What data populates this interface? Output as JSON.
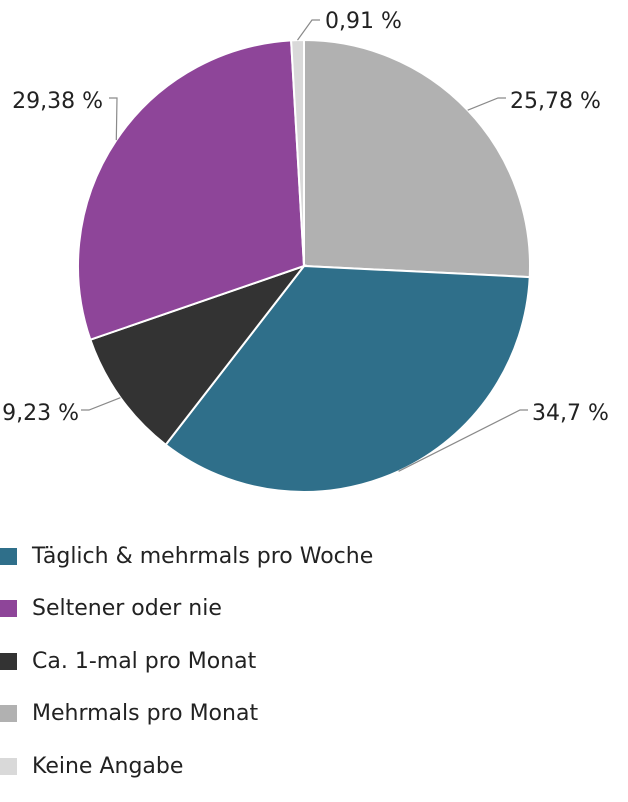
{
  "chart_data": {
    "type": "pie",
    "title": "",
    "slices": [
      {
        "label": "Mehrmals pro Monat",
        "value": 25.78,
        "value_label": "25,78 %",
        "color": "#b1b1b1"
      },
      {
        "label": "Täglich & mehrmals pro Woche",
        "value": 34.7,
        "value_label": "34,7 %",
        "color": "#2f6f8a"
      },
      {
        "label": "Ca. 1-mal pro Monat",
        "value": 9.23,
        "value_label": "9,23 %",
        "color": "#333333"
      },
      {
        "label": "Seltener oder nie",
        "value": 29.38,
        "value_label": "29,38 %",
        "color": "#8e4599"
      },
      {
        "label": "Keine Angabe",
        "value": 0.91,
        "value_label": "0,91 %",
        "color": "#d9d9d9"
      }
    ],
    "legend": {
      "placement": "bottom",
      "items": [
        {
          "label": "Täglich & mehrmals pro Woche",
          "color": "#2f6f8a"
        },
        {
          "label": "Seltener oder nie",
          "color": "#8e4599"
        },
        {
          "label": "Ca. 1-mal pro Monat",
          "color": "#333333"
        },
        {
          "label": "Mehrmals pro Monat",
          "color": "#b1b1b1"
        },
        {
          "label": "Keine Angabe",
          "color": "#d9d9d9"
        }
      ]
    }
  }
}
